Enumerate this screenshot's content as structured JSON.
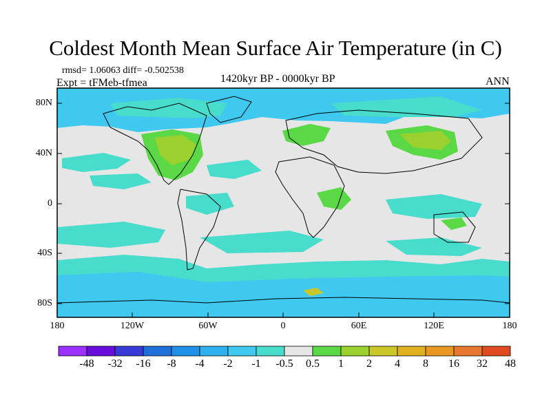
{
  "title": "Coldest Month Mean Surface Air Temperature (in C)",
  "stats": "rmsd= 1.06063 diff= -0.502538",
  "experiment": "Expt = tFMeb-tfmea",
  "period": "1420kyr BP - 0000kyr BP",
  "season": "ANN",
  "lat_labels": [
    "80N",
    "40N",
    "0",
    "40S",
    "80S"
  ],
  "lon_labels": [
    "180",
    "120W",
    "60W",
    "0",
    "60E",
    "120E",
    "180"
  ],
  "colorbar": {
    "labels": [
      "-48",
      "-32",
      "-16",
      "-8",
      "-4",
      "-2",
      "-1",
      "-0.5",
      "0.5",
      "1",
      "2",
      "4",
      "8",
      "16",
      "32",
      "48"
    ],
    "colors": [
      "#9b30ff",
      "#6a0ddb",
      "#3a3ad6",
      "#1f6fd9",
      "#1e90e8",
      "#2fb0ee",
      "#3fc8f0",
      "#47dccc",
      "#e6e6e6",
      "#5ad845",
      "#9bd12e",
      "#c8c82a",
      "#e0b020",
      "#e89820",
      "#e87830",
      "#e04a20"
    ]
  },
  "map_colors": {
    "neutral": "#e6e6e6",
    "cool_light": "#47dccc",
    "cool": "#3fc8f0",
    "warm_light": "#9bd12e",
    "warm": "#5ad845",
    "warmer": "#c8c82a",
    "coast": "#000000"
  }
}
